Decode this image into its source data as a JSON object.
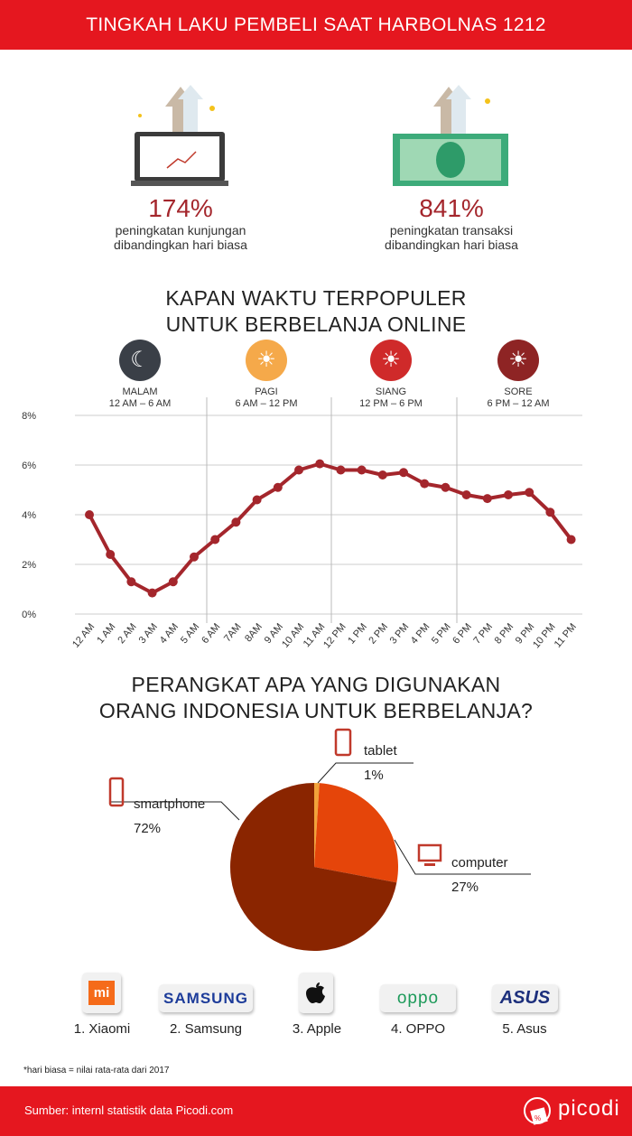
{
  "header": {
    "title": "TINGKAH LAKU PEMBELI SAAT HARBOLNAS 1212"
  },
  "stats": [
    {
      "value": "174%",
      "line1": "peningkatan kunjungan",
      "line2": "dibandingkan hari biasa",
      "icon": "laptop-chart-icon"
    },
    {
      "value": "841%",
      "line1": "peningkatan transaksi",
      "line2": "dibandingkan hari biasa",
      "icon": "money-bill-icon"
    }
  ],
  "time_section": {
    "title_line1": "KAPAN WAKTU TERPOPULER",
    "title_line2": "UNTUK BERBELANJA ONLINE",
    "periods": [
      {
        "name": "MALAM",
        "range": "12 AM – 6 AM",
        "icon": "moon-icon",
        "color": "#3a3f47"
      },
      {
        "name": "PAGI",
        "range": "6 AM – 12 PM",
        "icon": "sunrise-icon",
        "color": "#f5a94a"
      },
      {
        "name": "SIANG",
        "range": "12 PM – 6 PM",
        "icon": "sun-icon",
        "color": "#cf2a2a"
      },
      {
        "name": "SORE",
        "range": "6 PM – 12 AM",
        "icon": "sunset-icon",
        "color": "#8e2424"
      }
    ]
  },
  "chart_data": [
    {
      "type": "line",
      "categories": [
        "12 AM",
        "1 AM",
        "2 AM",
        "3 AM",
        "4 AM",
        "5 AM",
        "6 AM",
        "7AM",
        "8AM",
        "9 AM",
        "10 AM",
        "11 AM",
        "12 PM",
        "1 PM",
        "2 PM",
        "3 PM",
        "4 PM",
        "5 PM",
        "6 PM",
        "7 PM",
        "8 PM",
        "9 PM",
        "10 PM",
        "11 PM"
      ],
      "values": [
        4.0,
        2.4,
        1.3,
        0.85,
        1.3,
        2.3,
        3.0,
        3.7,
        4.6,
        5.1,
        5.8,
        6.05,
        5.8,
        5.8,
        5.6,
        5.7,
        5.25,
        5.1,
        4.8,
        4.65,
        4.8,
        4.9,
        4.1,
        3.0
      ],
      "ylim": [
        0,
        8
      ],
      "yticks": [
        "0%",
        "2%",
        "4%",
        "6%",
        "8%"
      ],
      "grid": true,
      "color": "#a4262c"
    },
    {
      "type": "pie",
      "title_line1": "PERANGKAT APA YANG DIGUNAKAN",
      "title_line2": "ORANG INDONESIA UNTUK BERBELANJA?",
      "slices": [
        {
          "label": "tablet",
          "value": 1,
          "display": "1%",
          "color": "#f2a33a",
          "icon": "tablet-icon"
        },
        {
          "label": "computer",
          "value": 27,
          "display": "27%",
          "color": "#e5450a",
          "icon": "monitor-icon"
        },
        {
          "label": "smartphone",
          "value": 72,
          "display": "72%",
          "color": "#8a2500",
          "icon": "smartphone-icon"
        }
      ]
    }
  ],
  "brands": [
    {
      "label": "1. Xiaomi",
      "logo": "MI"
    },
    {
      "label": "2. Samsung",
      "logo": "SAMSUNG"
    },
    {
      "label": "3. Apple",
      "logo": ""
    },
    {
      "label": "4. OPPO",
      "logo": "oppo"
    },
    {
      "label": "5. Asus",
      "logo": "ASUS"
    }
  ],
  "footnote": "*hari biasa = nilai rata-rata dari 2017",
  "footer": {
    "source": "Sumber: internl statistik data Picodi.com",
    "brand": "picodi"
  }
}
